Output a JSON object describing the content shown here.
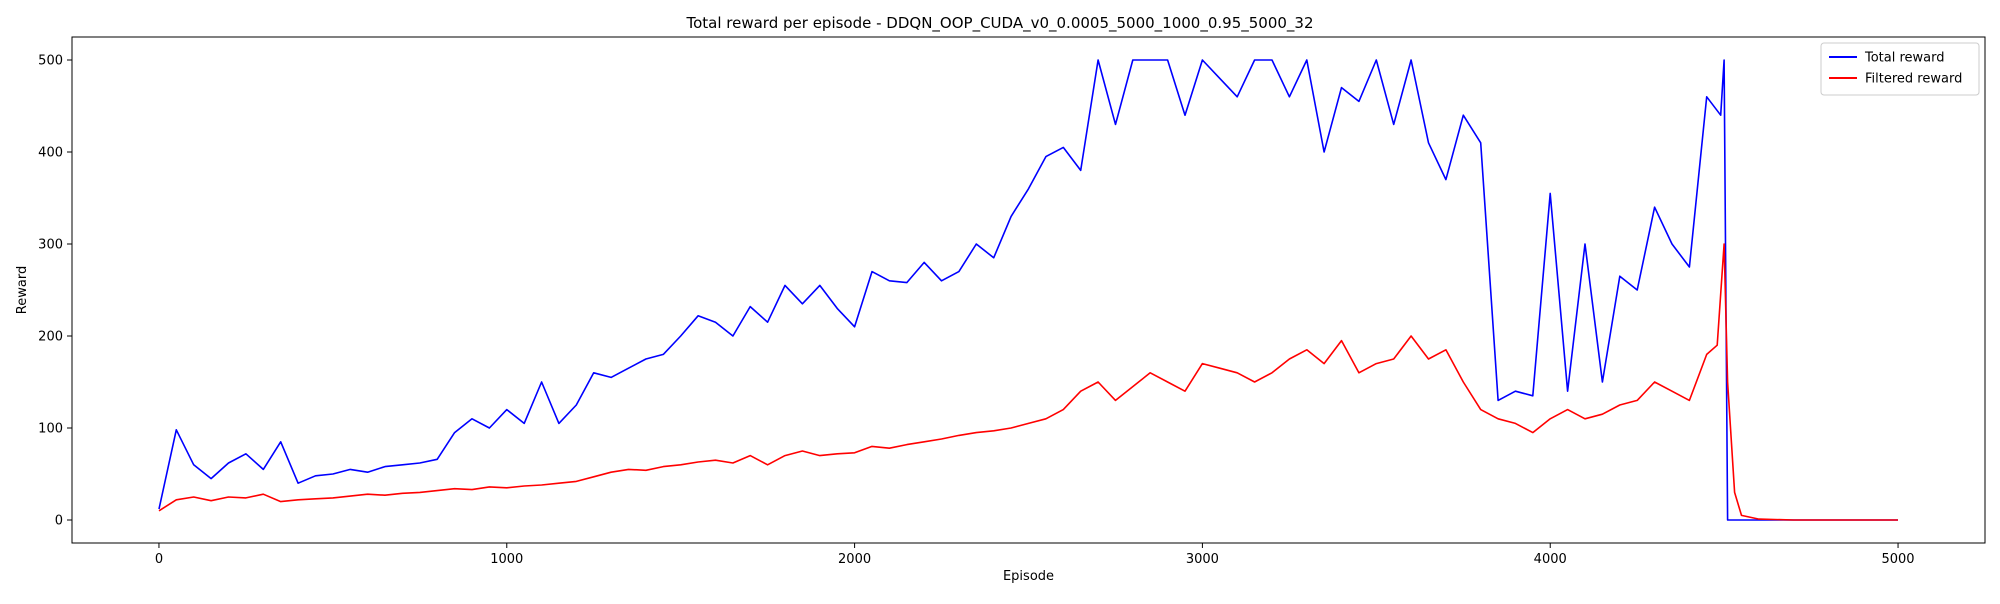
{
  "chart_data": {
    "type": "line",
    "title": "Total reward per episode - DDQN_OOP_CUDA_v0_0.0005_5000_1000_0.95_5000_32",
    "xlabel": "Episode",
    "ylabel": "Reward",
    "xlim": [
      -250,
      5250
    ],
    "ylim": [
      -25,
      525
    ],
    "xticks": [
      0,
      1000,
      2000,
      3000,
      4000,
      5000
    ],
    "yticks": [
      0,
      100,
      200,
      300,
      400,
      500
    ],
    "grid": false,
    "legend_position": "top-right",
    "series": [
      {
        "name": "Total reward",
        "color": "#0000ff",
        "x": [
          0,
          50,
          100,
          150,
          200,
          250,
          300,
          350,
          400,
          450,
          500,
          550,
          600,
          650,
          700,
          750,
          800,
          850,
          900,
          950,
          1000,
          1050,
          1100,
          1150,
          1200,
          1250,
          1300,
          1350,
          1400,
          1450,
          1500,
          1550,
          1600,
          1650,
          1700,
          1750,
          1800,
          1850,
          1900,
          1950,
          2000,
          2050,
          2100,
          2150,
          2200,
          2250,
          2300,
          2350,
          2400,
          2450,
          2500,
          2550,
          2600,
          2650,
          2700,
          2750,
          2800,
          2850,
          2900,
          2950,
          3000,
          3050,
          3100,
          3150,
          3200,
          3250,
          3300,
          3350,
          3400,
          3450,
          3500,
          3550,
          3600,
          3650,
          3700,
          3750,
          3800,
          3850,
          3900,
          3950,
          4000,
          4050,
          4100,
          4150,
          4200,
          4250,
          4300,
          4350,
          4400,
          4450,
          4490,
          4500,
          4510,
          4550,
          4600,
          4700,
          4800,
          4900,
          5000
        ],
        "y": [
          12,
          98,
          60,
          45,
          62,
          72,
          55,
          85,
          40,
          48,
          50,
          55,
          52,
          58,
          60,
          62,
          66,
          95,
          110,
          100,
          120,
          105,
          150,
          105,
          125,
          160,
          155,
          165,
          175,
          180,
          200,
          222,
          215,
          200,
          232,
          215,
          255,
          235,
          255,
          230,
          210,
          270,
          260,
          258,
          280,
          260,
          270,
          300,
          285,
          330,
          360,
          395,
          405,
          380,
          500,
          430,
          500,
          500,
          500,
          440,
          500,
          480,
          460,
          500,
          500,
          460,
          500,
          400,
          470,
          455,
          500,
          430,
          500,
          410,
          370,
          440,
          410,
          130,
          140,
          135,
          355,
          140,
          300,
          150,
          265,
          250,
          340,
          300,
          275,
          460,
          440,
          500,
          0,
          0,
          0,
          0,
          0,
          0,
          0
        ]
      },
      {
        "name": "Filtered reward",
        "color": "#ff0000",
        "x": [
          0,
          50,
          100,
          150,
          200,
          250,
          300,
          350,
          400,
          450,
          500,
          550,
          600,
          650,
          700,
          750,
          800,
          850,
          900,
          950,
          1000,
          1050,
          1100,
          1150,
          1200,
          1250,
          1300,
          1350,
          1400,
          1450,
          1500,
          1550,
          1600,
          1650,
          1700,
          1750,
          1800,
          1850,
          1900,
          1950,
          2000,
          2050,
          2100,
          2150,
          2200,
          2250,
          2300,
          2350,
          2400,
          2450,
          2500,
          2550,
          2600,
          2650,
          2700,
          2750,
          2800,
          2850,
          2900,
          2950,
          3000,
          3050,
          3100,
          3150,
          3200,
          3250,
          3300,
          3350,
          3400,
          3450,
          3500,
          3550,
          3600,
          3650,
          3700,
          3750,
          3800,
          3850,
          3900,
          3950,
          4000,
          4050,
          4100,
          4150,
          4200,
          4250,
          4300,
          4350,
          4400,
          4450,
          4480,
          4500,
          4510,
          4530,
          4550,
          4600,
          4700,
          4800,
          5000
        ],
        "y": [
          10,
          22,
          25,
          21,
          25,
          24,
          28,
          20,
          22,
          23,
          24,
          26,
          28,
          27,
          29,
          30,
          32,
          34,
          33,
          36,
          35,
          37,
          38,
          40,
          42,
          47,
          52,
          55,
          54,
          58,
          60,
          63,
          65,
          62,
          70,
          60,
          70,
          75,
          70,
          72,
          73,
          80,
          78,
          82,
          85,
          88,
          92,
          95,
          97,
          100,
          105,
          110,
          120,
          140,
          150,
          130,
          145,
          160,
          150,
          140,
          170,
          165,
          160,
          150,
          160,
          175,
          185,
          170,
          195,
          160,
          170,
          175,
          200,
          175,
          185,
          150,
          120,
          110,
          105,
          95,
          110,
          120,
          110,
          115,
          125,
          130,
          150,
          140,
          130,
          180,
          190,
          300,
          150,
          30,
          5,
          1,
          0,
          0,
          0
        ]
      }
    ]
  }
}
